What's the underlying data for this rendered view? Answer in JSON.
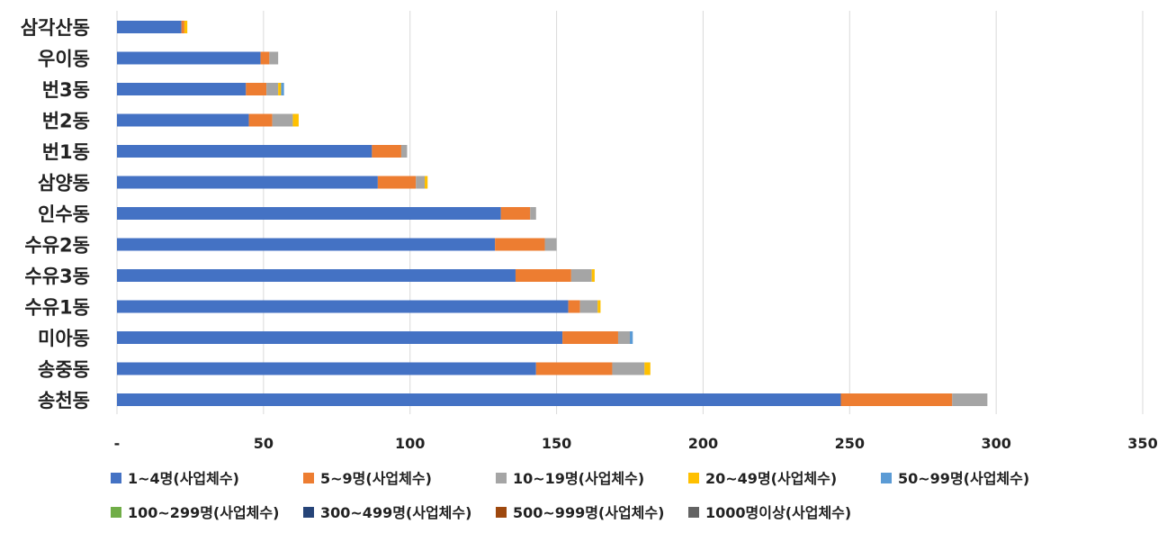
{
  "chart_data": {
    "type": "bar",
    "orientation": "horizontal",
    "stacked": true,
    "categories": [
      "삼각산동",
      "우이동",
      "번3동",
      "번2동",
      "번1동",
      "삼양동",
      "인수동",
      "수유2동",
      "수유3동",
      "수유1동",
      "미아동",
      "송중동",
      "송천동"
    ],
    "series": [
      {
        "name": "1~4명(사업체수)",
        "color": "#4472C4",
        "values": [
          22,
          49,
          44,
          45,
          87,
          89,
          131,
          129,
          136,
          154,
          152,
          143,
          247
        ]
      },
      {
        "name": "5~9명(사업체수)",
        "color": "#ED7D31",
        "values": [
          1,
          3,
          7,
          8,
          10,
          13,
          10,
          17,
          19,
          4,
          19,
          26,
          38
        ]
      },
      {
        "name": "10~19명(사업체수)",
        "color": "#A5A5A5",
        "values": [
          0,
          3,
          4,
          7,
          2,
          3,
          2,
          4,
          7,
          6,
          4,
          11,
          12
        ]
      },
      {
        "name": "20~49명(사업체수)",
        "color": "#FFC000",
        "values": [
          1,
          0,
          1,
          2,
          0,
          1,
          0,
          0,
          1,
          1,
          0,
          2,
          0
        ]
      },
      {
        "name": "50~99명(사업체수)",
        "color": "#5B9BD5",
        "values": [
          0,
          0,
          1,
          0,
          0,
          0,
          0,
          0,
          0,
          0,
          1,
          0,
          0
        ]
      },
      {
        "name": "100~299명(사업체수)",
        "color": "#70AD47",
        "values": [
          0,
          0,
          0,
          0,
          0,
          0,
          0,
          0,
          0,
          0,
          0,
          0,
          0
        ]
      },
      {
        "name": "300~499명(사업체수)",
        "color": "#264478",
        "values": [
          0,
          0,
          0,
          0,
          0,
          0,
          0,
          0,
          0,
          0,
          0,
          0,
          0
        ]
      },
      {
        "name": "500~999명(사업체수)",
        "color": "#9E480E",
        "values": [
          0,
          0,
          0,
          0,
          0,
          0,
          0,
          0,
          0,
          0,
          0,
          0,
          0
        ]
      },
      {
        "name": "1000명이상(사업체수)",
        "color": "#636363",
        "values": [
          0,
          0,
          0,
          0,
          0,
          0,
          0,
          0,
          0,
          0,
          0,
          0,
          0
        ]
      }
    ],
    "xlim": [
      0,
      350
    ],
    "x_ticks": [
      {
        "value": 0,
        "label": "-"
      },
      {
        "value": 50,
        "label": "50"
      },
      {
        "value": 100,
        "label": "100"
      },
      {
        "value": 150,
        "label": "150"
      },
      {
        "value": 200,
        "label": "200"
      },
      {
        "value": 250,
        "label": "250"
      },
      {
        "value": 300,
        "label": "300"
      },
      {
        "value": 350,
        "label": "350"
      }
    ],
    "grid": true,
    "legend_position": "bottom",
    "title": "",
    "xlabel": "",
    "ylabel": ""
  }
}
